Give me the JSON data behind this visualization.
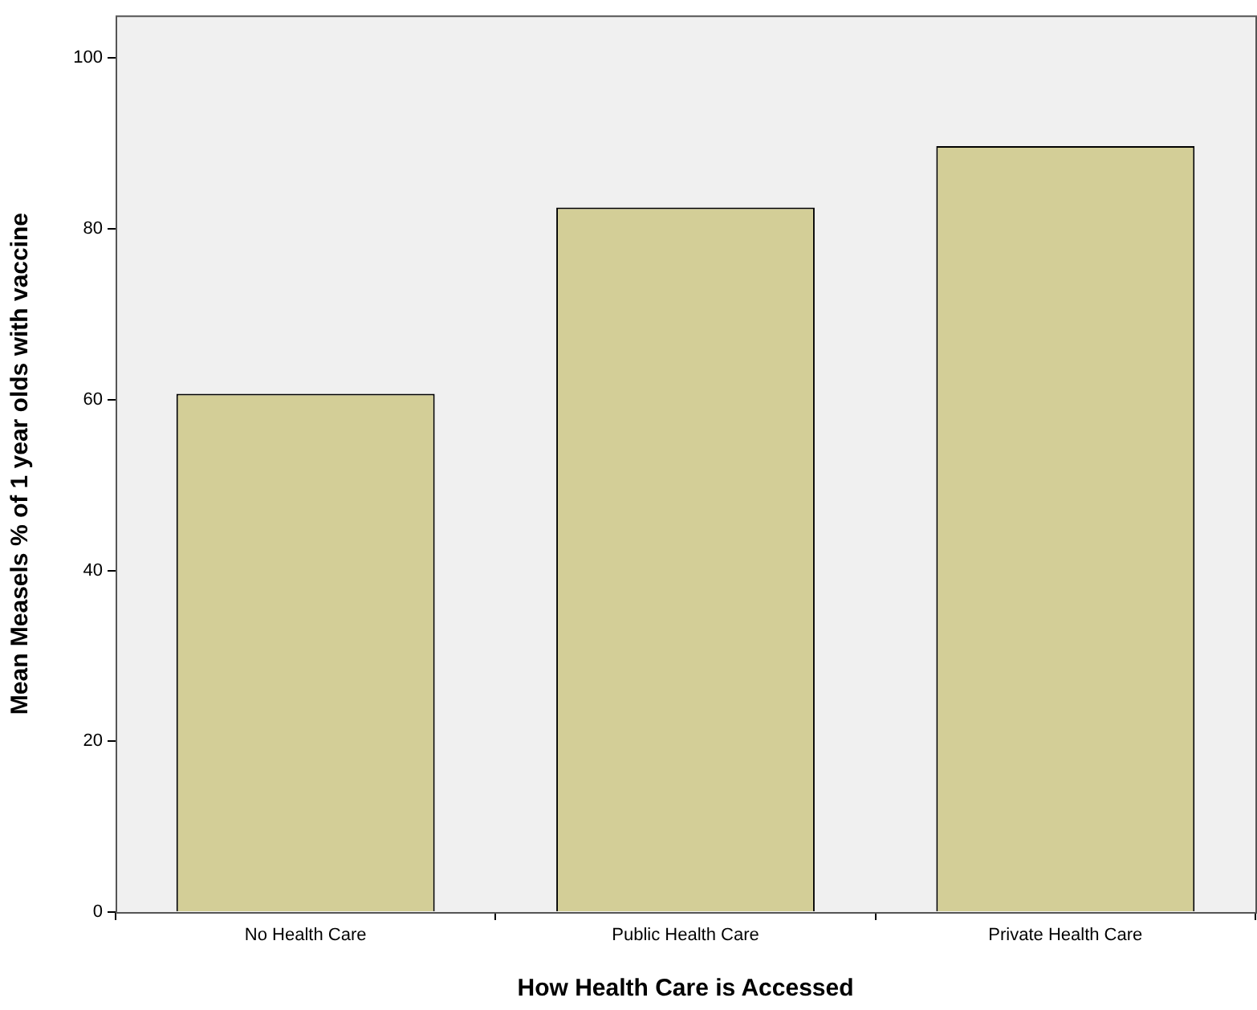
{
  "chart_data": {
    "type": "bar",
    "xlabel": "How Health Care is Accessed",
    "ylabel": "Mean Measels % of 1 year olds with vaccine",
    "categories": [
      "No Health Care",
      "Public Health Care",
      "Private Health Care"
    ],
    "values": [
      60.7,
      82.5,
      89.7
    ],
    "color": "#d3ce97",
    "ylim": [
      0,
      105
    ],
    "yticks": [
      0,
      20,
      40,
      60,
      80,
      100
    ],
    "grid": false,
    "legend": false
  }
}
